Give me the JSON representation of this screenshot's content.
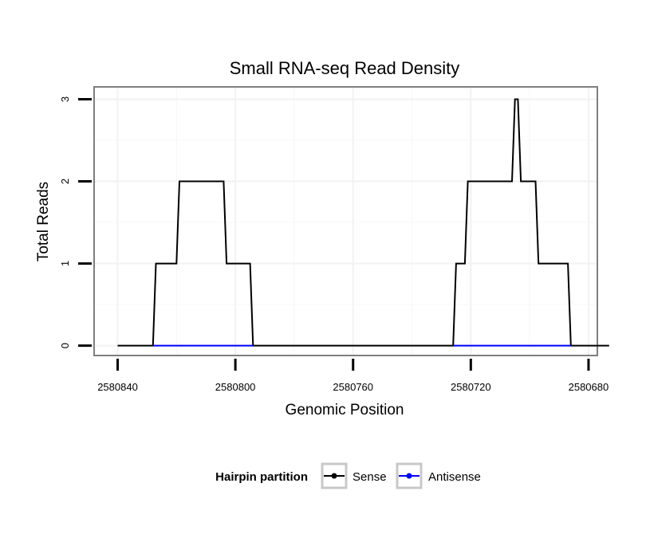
{
  "chart_data": {
    "type": "line",
    "title": "Small RNA-seq Read Density",
    "xlabel": "Genomic Position",
    "ylabel": "Total Reads",
    "x_reversed": true,
    "xlim": [
      2580848,
      2580677
    ],
    "ylim": [
      -0.12,
      3.15
    ],
    "x_ticks": [
      2580840,
      2580800,
      2580760,
      2580720,
      2580680
    ],
    "x_tick_labels": [
      "2580840",
      "2580800",
      "2580760",
      "2580720",
      "2580680"
    ],
    "y_ticks": [
      0,
      1,
      2,
      3
    ],
    "y_tick_labels": [
      "0",
      "1",
      "2",
      "3"
    ],
    "grid": true,
    "legend": {
      "title": "Hairpin partition",
      "position": "bottom",
      "entries": [
        {
          "name": "Sense",
          "color": "#000000"
        },
        {
          "name": "Antisense",
          "color": "#0000ff"
        }
      ]
    },
    "series": [
      {
        "name": "Sense",
        "color": "#000000",
        "x": [
          2580840,
          2580828,
          2580827,
          2580820,
          2580819,
          2580804,
          2580803,
          2580795,
          2580794,
          2580726,
          2580725,
          2580722,
          2580721,
          2580706,
          2580705,
          2580704,
          2580703,
          2580698,
          2580697,
          2580687,
          2580686,
          2580673
        ],
        "values": [
          0,
          0,
          1,
          1,
          2,
          2,
          1,
          1,
          0,
          0,
          1,
          1,
          2,
          2,
          3,
          3,
          2,
          2,
          1,
          1,
          0,
          0
        ]
      },
      {
        "name": "Antisense",
        "color": "#0000ff",
        "x": [
          2580828,
          2580794,
          null,
          2580726,
          2580686
        ],
        "values": [
          0,
          0,
          null,
          0,
          0
        ]
      }
    ]
  }
}
